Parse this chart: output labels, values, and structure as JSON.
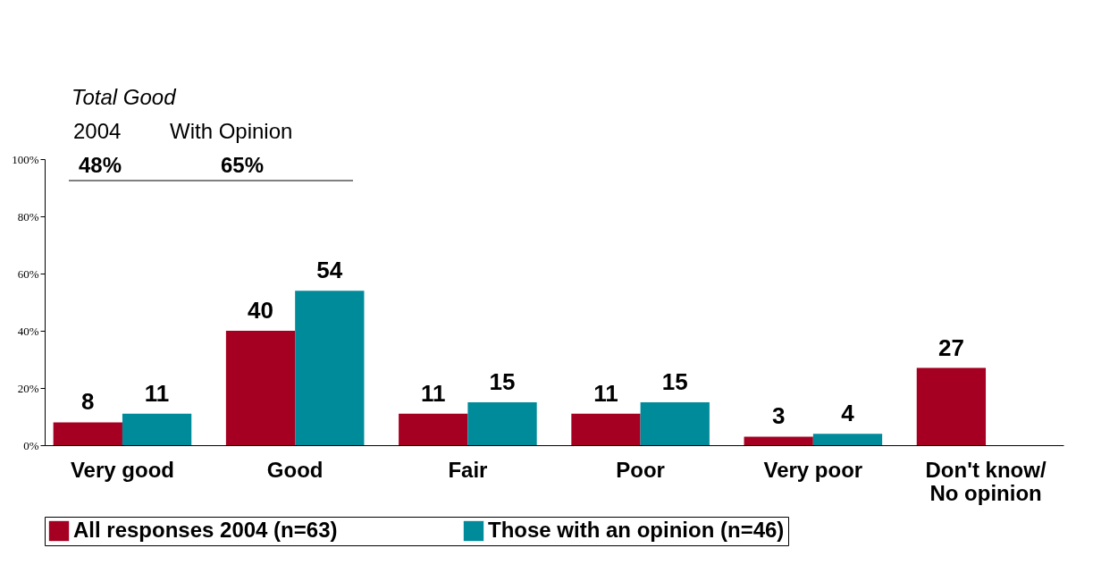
{
  "chart_data": {
    "type": "bar",
    "categories": [
      "Very good",
      "Good",
      "Fair",
      "Poor",
      "Very poor",
      "Don't know/\nNo opinion"
    ],
    "series": [
      {
        "name": "All responses 2004 (n=63)",
        "color": "#a50021",
        "values": [
          8,
          40,
          11,
          11,
          3,
          27
        ]
      },
      {
        "name": "Those with an opinion (n=46)",
        "color": "#008b9b",
        "values": [
          11,
          54,
          15,
          15,
          4,
          null
        ]
      }
    ],
    "ylim": [
      0,
      100
    ],
    "yticks": [
      {
        "value": 0,
        "label": "0%"
      },
      {
        "value": 20,
        "label": "20%"
      },
      {
        "value": 40,
        "label": "40%"
      },
      {
        "value": 60,
        "label": "60%"
      },
      {
        "value": 80,
        "label": "80%"
      },
      {
        "value": 100,
        "label": "100%"
      }
    ],
    "data_labels": true,
    "grid": false,
    "legend": "bottom",
    "annotations": [
      "Total Good",
      "2004",
      "With Opinion",
      "48%",
      "65%"
    ]
  }
}
